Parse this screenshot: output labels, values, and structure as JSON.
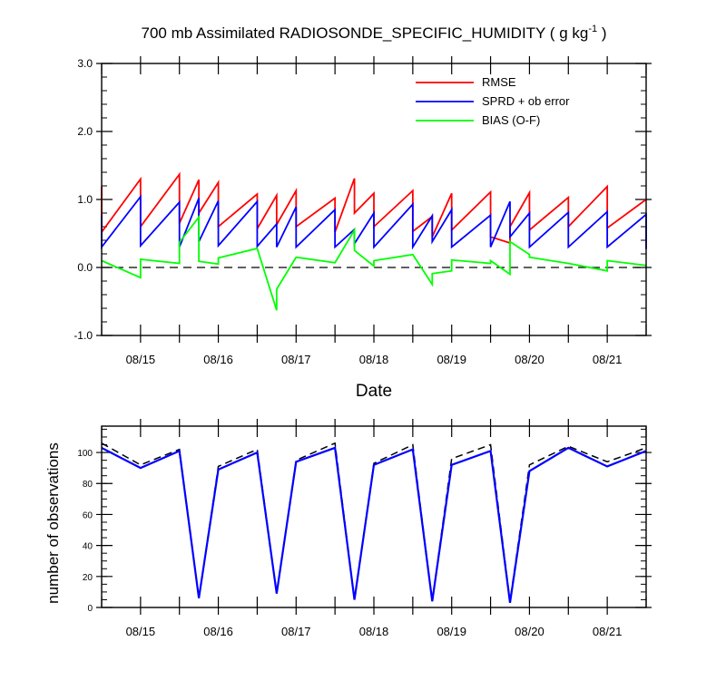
{
  "chart_data": [
    {
      "type": "line",
      "title_main": "700 mb Assimilated RADIOSONDE_SPECIFIC_HUMIDITY ( g kg",
      "title_sup": "-1",
      "title_end": " )",
      "xlabel": "Date",
      "ylabel": "",
      "ylim": [
        -1.0,
        3.0
      ],
      "xlim": [
        0,
        14
      ],
      "y_ticks": [
        -1.0,
        0.0,
        1.0,
        2.0,
        3.0
      ],
      "y_tick_labels": [
        "-1.0",
        "0.0",
        "1.0",
        "2.0",
        "3.0"
      ],
      "x_ticks": [
        1,
        3,
        5,
        7,
        9,
        11,
        13
      ],
      "x_tick_labels": [
        "08/15",
        "08/16",
        "08/17",
        "08/18",
        "08/19",
        "08/20",
        "08/21"
      ],
      "reference_line": 0.0,
      "legend": {
        "position": "top-right",
        "entries": [
          {
            "name": "RMSE",
            "color": "#ff0000"
          },
          {
            "name": "SPRD + ob error",
            "color": "#0000ff"
          },
          {
            "name": "BIAS (O-F)",
            "color": "#00ff00"
          }
        ]
      },
      "series": [
        {
          "name": "RMSE",
          "color": "#ff0000",
          "points": [
            [
              0,
              1.19
            ],
            [
              0,
              0.52
            ],
            [
              1,
              1.3
            ],
            [
              1,
              0.6
            ],
            [
              2,
              1.37
            ],
            [
              2,
              0.65
            ],
            [
              2.5,
              1.29
            ],
            [
              2.5,
              0.8
            ],
            [
              3,
              1.25
            ],
            [
              3,
              0.6
            ],
            [
              4,
              1.08
            ],
            [
              4,
              0.57
            ],
            [
              4.5,
              1.06
            ],
            [
              4.5,
              0.63
            ],
            [
              5,
              1.13
            ],
            [
              5,
              0.6
            ],
            [
              6,
              1.02
            ],
            [
              6,
              0.52
            ],
            [
              6.5,
              1.31
            ],
            [
              6.5,
              0.8
            ],
            [
              7,
              1.09
            ],
            [
              7,
              0.6
            ],
            [
              8,
              1.13
            ],
            [
              8,
              0.53
            ],
            [
              8.5,
              0.75
            ],
            [
              8.5,
              0.45
            ],
            [
              9,
              1.09
            ],
            [
              9,
              0.55
            ],
            [
              10,
              1.11
            ],
            [
              10,
              0.45
            ],
            [
              10.5,
              0.36
            ],
            [
              10.5,
              0.6
            ],
            [
              11,
              1.1
            ],
            [
              11,
              0.55
            ],
            [
              12,
              1.03
            ],
            [
              12,
              0.6
            ],
            [
              13,
              1.19
            ],
            [
              13,
              0.58
            ],
            [
              14,
              1.0
            ]
          ]
        },
        {
          "name": "SPRD + ob error",
          "color": "#0000ff",
          "points": [
            [
              0,
              0.78
            ],
            [
              0,
              0.3
            ],
            [
              1,
              1.04
            ],
            [
              1,
              0.32
            ],
            [
              2,
              0.96
            ],
            [
              2,
              0.3
            ],
            [
              2.5,
              1.02
            ],
            [
              2.5,
              0.38
            ],
            [
              3,
              0.98
            ],
            [
              3,
              0.32
            ],
            [
              4,
              0.97
            ],
            [
              4,
              0.31
            ],
            [
              4.5,
              0.64
            ],
            [
              4.5,
              0.3
            ],
            [
              5,
              0.89
            ],
            [
              5,
              0.3
            ],
            [
              6,
              0.85
            ],
            [
              6,
              0.3
            ],
            [
              6.5,
              0.56
            ],
            [
              6.5,
              0.35
            ],
            [
              7,
              0.8
            ],
            [
              7,
              0.3
            ],
            [
              8,
              0.93
            ],
            [
              8,
              0.3
            ],
            [
              8.5,
              0.76
            ],
            [
              8.5,
              0.38
            ],
            [
              9,
              0.85
            ],
            [
              9,
              0.3
            ],
            [
              10,
              0.77
            ],
            [
              10,
              0.3
            ],
            [
              10.5,
              0.97
            ],
            [
              10.5,
              0.45
            ],
            [
              11,
              0.8
            ],
            [
              11,
              0.3
            ],
            [
              12,
              0.81
            ],
            [
              12,
              0.3
            ],
            [
              13,
              0.82
            ],
            [
              13,
              0.3
            ],
            [
              14,
              0.78
            ],
            [
              14,
              0.27
            ]
          ]
        },
        {
          "name": "BIAS (O-F)",
          "color": "#00ff00",
          "points": [
            [
              0,
              0.1
            ],
            [
              1,
              -0.15
            ],
            [
              1,
              0.12
            ],
            [
              2,
              0.06
            ],
            [
              2,
              0.37
            ],
            [
              2.5,
              0.74
            ],
            [
              2.5,
              0.09
            ],
            [
              3,
              0.05
            ],
            [
              3,
              0.14
            ],
            [
              4,
              0.28
            ],
            [
              4.5,
              -0.63
            ],
            [
              4.5,
              -0.32
            ],
            [
              5,
              0.15
            ],
            [
              6,
              0.07
            ],
            [
              6.5,
              0.55
            ],
            [
              6.5,
              0.25
            ],
            [
              7,
              0.02
            ],
            [
              7,
              0.1
            ],
            [
              8,
              0.19
            ],
            [
              8.5,
              -0.25
            ],
            [
              8.5,
              -0.09
            ],
            [
              9,
              -0.05
            ],
            [
              9,
              0.11
            ],
            [
              10,
              0.06
            ],
            [
              10,
              0.1
            ],
            [
              10.5,
              -0.1
            ],
            [
              10.5,
              0.38
            ],
            [
              11,
              0.19
            ],
            [
              11,
              0.15
            ],
            [
              12,
              0.06
            ],
            [
              13,
              -0.05
            ],
            [
              13,
              0.1
            ],
            [
              14,
              0.03
            ]
          ]
        }
      ]
    },
    {
      "type": "line",
      "title": "",
      "xlabel": "",
      "ylabel": "number of observations",
      "ylim": [
        0,
        117
      ],
      "xlim": [
        0,
        14
      ],
      "y_ticks": [
        0,
        20,
        40,
        60,
        80,
        100
      ],
      "y_tick_labels": [
        "0",
        "20",
        "40",
        "60",
        "80",
        "100"
      ],
      "x_ticks": [
        1,
        3,
        5,
        7,
        9,
        11,
        13
      ],
      "x_tick_labels": [
        "08/15",
        "08/16",
        "08/17",
        "08/18",
        "08/19",
        "08/20",
        "08/21"
      ],
      "series": [
        {
          "name": "observations (dashed)",
          "color": "#000000",
          "dashed": true,
          "points": [
            [
              0,
              106
            ],
            [
              1,
              92
            ],
            [
              2,
              102
            ],
            [
              2.5,
              6
            ],
            [
              3,
              91
            ],
            [
              4,
              102
            ],
            [
              4.5,
              9
            ],
            [
              5,
              95
            ],
            [
              6,
              106
            ],
            [
              6.5,
              5
            ],
            [
              7,
              93
            ],
            [
              8,
              105
            ],
            [
              8.5,
              4
            ],
            [
              9,
              96
            ],
            [
              10,
              105
            ],
            [
              10.5,
              4
            ],
            [
              11,
              92
            ],
            [
              12,
              104
            ],
            [
              13,
              94
            ],
            [
              14,
              103
            ]
          ]
        },
        {
          "name": "observations (solid)",
          "color": "#0000ff",
          "dashed": false,
          "points": [
            [
              0,
              103
            ],
            [
              1,
              90
            ],
            [
              2,
              101
            ],
            [
              2.5,
              6
            ],
            [
              3,
              89
            ],
            [
              4,
              100
            ],
            [
              4.5,
              9
            ],
            [
              5,
              94
            ],
            [
              6,
              103
            ],
            [
              6.5,
              5
            ],
            [
              7,
              92
            ],
            [
              8,
              102
            ],
            [
              8.5,
              4
            ],
            [
              9,
              92
            ],
            [
              10,
              101
            ],
            [
              10.5,
              3
            ],
            [
              11,
              88
            ],
            [
              12,
              103
            ],
            [
              13,
              91
            ],
            [
              14,
              101
            ]
          ]
        }
      ]
    }
  ]
}
